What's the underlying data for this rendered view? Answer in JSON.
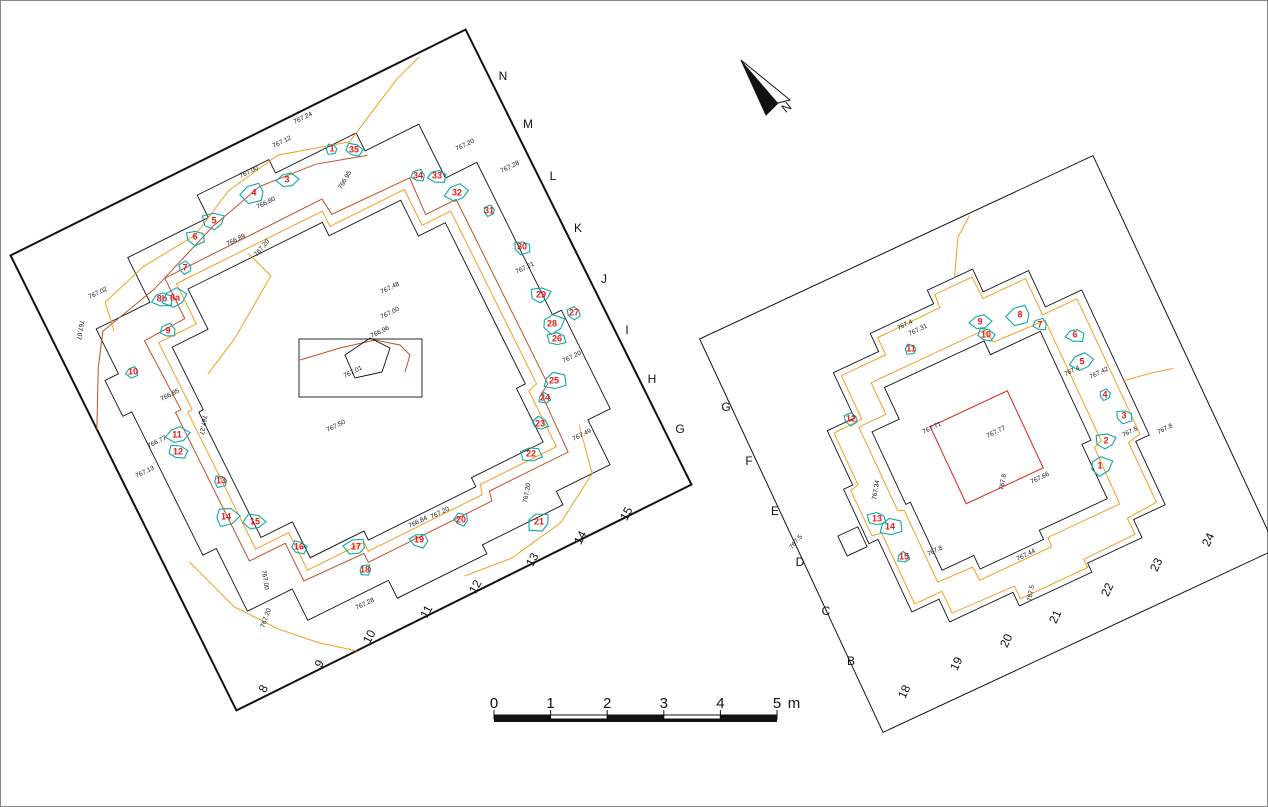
{
  "north_arrow": {
    "label": "N"
  },
  "left_plan": {
    "grid_letters": [
      "N",
      "M",
      "L",
      "K",
      "J",
      "I",
      "H",
      "G"
    ],
    "grid_numbers": [
      "8",
      "9",
      "10",
      "11",
      "12",
      "13",
      "14",
      "15"
    ],
    "stones": [
      "1",
      "35",
      "3",
      "4",
      "34",
      "33",
      "32",
      "31",
      "30",
      "29",
      "28",
      "27",
      "26",
      "25",
      "24",
      "23",
      "22",
      "21",
      "20",
      "19",
      "17",
      "18",
      "16",
      "15",
      "14",
      "13",
      "12",
      "11",
      "10",
      "9",
      "8b",
      "8a",
      "7",
      "6",
      "5"
    ],
    "elevations": [
      "767.24",
      "767.12",
      "767.00",
      "766.80",
      "766.95",
      "767.20",
      "767.28",
      "766.89",
      "767.20",
      "767.02",
      "767.07",
      "767.21",
      "767.48",
      "767.00",
      "766.96",
      "767.01",
      "767.50",
      "766.85",
      "766.77",
      "767.13",
      "767.27",
      "767.20",
      "767.49",
      "767.20",
      "766.84",
      "767.20",
      "767.00",
      "767.28",
      "767.20"
    ]
  },
  "right_plan": {
    "grid_letters": [
      "G",
      "F",
      "E",
      "D",
      "C",
      "B"
    ],
    "grid_numbers": [
      "18",
      "19",
      "20",
      "21",
      "22",
      "23",
      "24"
    ],
    "stones": [
      "11",
      "10",
      "9",
      "8",
      "7",
      "6",
      "5",
      "4",
      "3",
      "2",
      "1",
      "12",
      "13",
      "14",
      "15"
    ],
    "elevations": [
      "767.4",
      "767.31",
      "767.4",
      "767.42",
      "767.5",
      "767.8",
      "767.71",
      "767.77",
      "767.8",
      "767.66",
      "767.34",
      "767.5",
      "767.8",
      "767.44",
      "767.5"
    ]
  },
  "scale_bar": {
    "labels": [
      "0",
      "1",
      "2",
      "3",
      "4",
      "5"
    ],
    "unit": "m"
  }
}
